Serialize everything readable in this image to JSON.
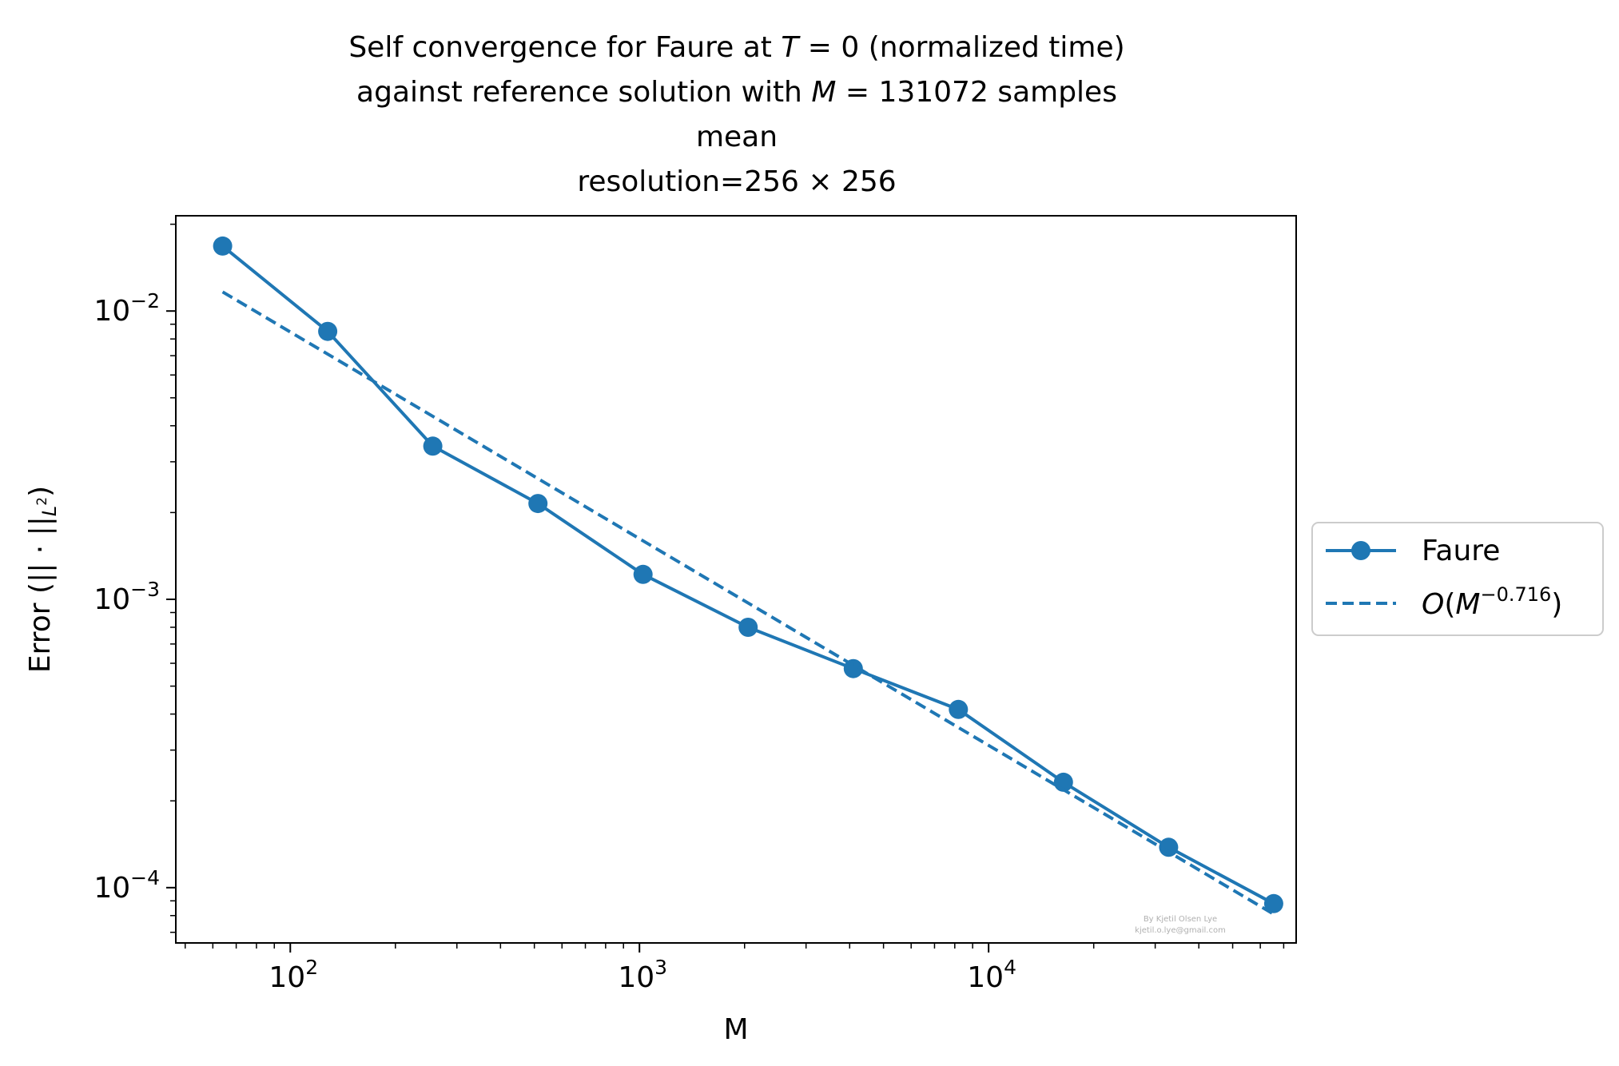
{
  "chart_data": {
    "type": "line",
    "title_lines": [
      "Self convergence for Faure at T = 0 (normalized time)",
      "against reference solution with M = 131072 samples",
      "mean",
      "resolution=256 × 256"
    ],
    "xlabel": "M",
    "ylabel": "Error (|| · ||L²)",
    "xscale": "log",
    "yscale": "log",
    "xlim": [
      47,
      76000
    ],
    "ylim": [
      6.43e-05,
      0.0214
    ],
    "x_ticks": [
      {
        "value": 100,
        "label": "10^2"
      },
      {
        "value": 1000,
        "label": "10^3"
      },
      {
        "value": 10000,
        "label": "10^4"
      }
    ],
    "y_ticks": [
      {
        "value": 0.0001,
        "label": "10^-4"
      },
      {
        "value": 0.001,
        "label": "10^-3"
      },
      {
        "value": 0.01,
        "label": "10^-2"
      }
    ],
    "grid": false,
    "legend_position": "outside-right",
    "color": "#1f77b4",
    "series": [
      {
        "name": "Faure",
        "style": "solid-marker",
        "x": [
          64,
          128,
          256,
          512,
          1024,
          2048,
          4096,
          8192,
          16384,
          32768,
          65536
        ],
        "y": [
          0.0168,
          0.0085,
          0.0034,
          0.00215,
          0.00122,
          0.0008,
          0.000575,
          0.000415,
          0.000232,
          0.000138,
          8.8e-05
        ]
      },
      {
        "name": "O(M^-0.716)",
        "style": "dashed",
        "x": [
          64,
          65536
        ],
        "y": [
          0.01165,
          8.09e-05
        ]
      }
    ],
    "watermark": [
      "By Kjetil Olsen Lye",
      "kjetil.o.lye@gmail.com"
    ]
  }
}
